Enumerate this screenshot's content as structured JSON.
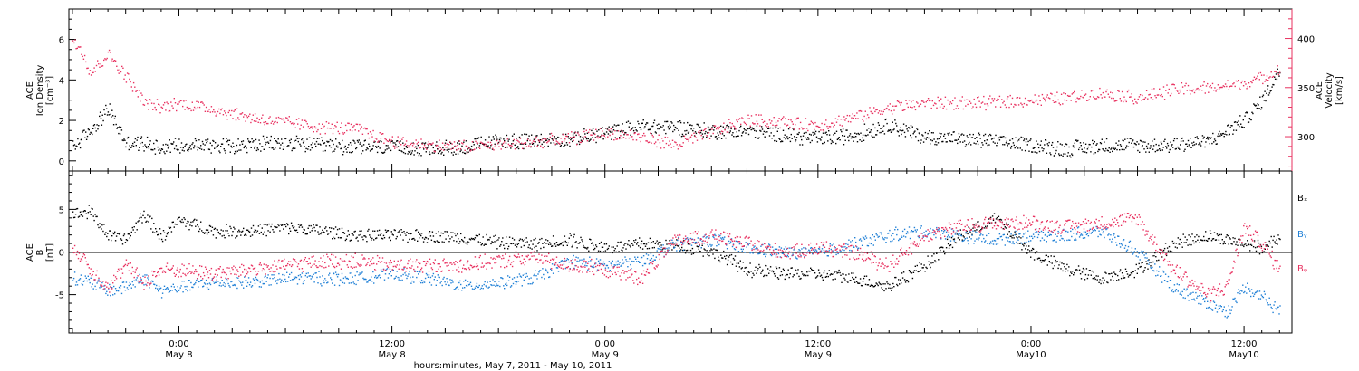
{
  "colors": {
    "density": "#000000",
    "velocity": "#e8305f",
    "bx": "#000000",
    "by": "#1e7fd6",
    "bz": "#e8305f",
    "axes": "#000000"
  },
  "chart_data": [
    {
      "type": "scatter",
      "panel": "top",
      "ylabel_left": [
        "ACE",
        "Ion Density",
        "[cm⁻³]"
      ],
      "ylabel_right": [
        "ACE",
        "Velocity",
        "[km/s]"
      ],
      "ylim_left": [
        -0.5,
        7.5
      ],
      "ylim_right": [
        265,
        430
      ],
      "yticks_left": [
        "0",
        "2",
        "4",
        "6"
      ],
      "yticks_right": [
        "300",
        "350",
        "400"
      ],
      "x_unit": "hours since 2011-05-07 00:00 UT",
      "xlim": [
        17.8,
        86.7
      ],
      "series": [
        {
          "key": "density",
          "axis": "left",
          "x": [
            18,
            19,
            20,
            21,
            22,
            23,
            24,
            26,
            28,
            30,
            32,
            34,
            36,
            38,
            40,
            42,
            44,
            46,
            48,
            50,
            52,
            54,
            56,
            58,
            60,
            62,
            64,
            66,
            68,
            70,
            72,
            74,
            76,
            78,
            80,
            82,
            83,
            84,
            85,
            86
          ],
          "y": [
            0.7,
            1.5,
            2.6,
            0.9,
            0.9,
            0.7,
            0.8,
            0.8,
            0.8,
            0.9,
            0.8,
            0.7,
            0.7,
            0.6,
            0.7,
            1.0,
            1.0,
            1.1,
            1.4,
            1.7,
            1.7,
            1.5,
            1.5,
            1.3,
            1.1,
            1.3,
            1.8,
            1.2,
            1.1,
            1.0,
            0.8,
            0.6,
            0.8,
            0.8,
            0.8,
            1.0,
            1.5,
            2.0,
            3.0,
            4.5
          ]
        },
        {
          "key": "velocity",
          "axis": "right",
          "x": [
            18,
            18.5,
            19,
            20,
            21,
            22,
            23,
            24,
            26,
            28,
            30,
            32,
            34,
            36,
            38,
            40,
            42,
            44,
            46,
            48,
            50,
            52,
            54,
            56,
            58,
            60,
            62,
            64,
            66,
            68,
            70,
            72,
            74,
            76,
            78,
            80,
            82,
            83,
            84,
            85,
            86
          ],
          "y": [
            400,
            390,
            365,
            385,
            362,
            335,
            330,
            335,
            328,
            320,
            315,
            310,
            308,
            295,
            292,
            290,
            292,
            295,
            298,
            305,
            300,
            292,
            305,
            318,
            315,
            312,
            320,
            330,
            335,
            335,
            335,
            338,
            340,
            345,
            340,
            348,
            350,
            352,
            355,
            360,
            370
          ]
        }
      ]
    },
    {
      "type": "scatter",
      "panel": "bottom",
      "ylabel_left": [
        "ACE",
        "B",
        "[nT]"
      ],
      "ylim": [
        -9.5,
        9.5
      ],
      "yticks": [
        "-5",
        "0",
        "5"
      ],
      "x_unit": "hours since 2011-05-07 00:00 UT",
      "xlim": [
        17.8,
        86.7
      ],
      "series": [
        {
          "key": "bx",
          "name": "Bₓ",
          "x": [
            18,
            19,
            20,
            21,
            22,
            23,
            24,
            26,
            28,
            30,
            32,
            34,
            36,
            38,
            40,
            42,
            44,
            46,
            48,
            50,
            52,
            54,
            56,
            58,
            60,
            62,
            64,
            66,
            68,
            70,
            72,
            74,
            76,
            78,
            80,
            82,
            84,
            85,
            86
          ],
          "y": [
            4.5,
            4.8,
            2.0,
            1.5,
            4.5,
            1.8,
            3.8,
            2.5,
            2.5,
            3.0,
            2.5,
            2.0,
            2.0,
            2.0,
            1.8,
            1.2,
            1.0,
            1.5,
            0.5,
            1.0,
            0.8,
            0.2,
            -2.0,
            -2.5,
            -2.5,
            -3.0,
            -4.0,
            -1.5,
            2.0,
            4.0,
            0.0,
            -2.0,
            -3.0,
            -2.0,
            1.0,
            2.0,
            1.0,
            0.5,
            2.0
          ]
        },
        {
          "key": "by",
          "name": "Bᵧ",
          "x": [
            18,
            19,
            20,
            21,
            22,
            23,
            24,
            26,
            28,
            30,
            32,
            34,
            36,
            38,
            40,
            42,
            44,
            46,
            48,
            50,
            52,
            54,
            56,
            58,
            60,
            62,
            64,
            66,
            68,
            70,
            72,
            74,
            76,
            78,
            80,
            82,
            83,
            84,
            85,
            86
          ],
          "y": [
            -3.0,
            -3.5,
            -4.5,
            -4.0,
            -3.0,
            -4.5,
            -4.0,
            -3.5,
            -3.5,
            -3.0,
            -3.0,
            -3.0,
            -2.5,
            -3.0,
            -4.0,
            -3.5,
            -3.0,
            -1.0,
            -1.5,
            -1.0,
            1.0,
            1.5,
            0.5,
            0.0,
            0.0,
            1.0,
            2.0,
            2.5,
            2.0,
            1.5,
            2.0,
            2.0,
            2.5,
            0.0,
            -4.0,
            -6.0,
            -7.0,
            -4.0,
            -5.0,
            -7.0
          ]
        },
        {
          "key": "bz",
          "name": "Bᵩ",
          "x": [
            18,
            19,
            20,
            21,
            22,
            23,
            24,
            26,
            28,
            30,
            32,
            34,
            36,
            38,
            40,
            42,
            44,
            46,
            48,
            50,
            52,
            54,
            56,
            58,
            60,
            62,
            64,
            66,
            68,
            70,
            72,
            74,
            76,
            78,
            80,
            82,
            83,
            84,
            85,
            86
          ],
          "y": [
            1.0,
            -2.0,
            -4.0,
            -1.5,
            -3.5,
            -2.0,
            -2.0,
            -2.5,
            -2.0,
            -1.5,
            -1.0,
            -1.0,
            -1.5,
            -1.5,
            -1.5,
            -1.0,
            -0.5,
            -1.5,
            -2.0,
            -3.0,
            1.5,
            2.0,
            1.0,
            0.0,
            0.5,
            0.0,
            -1.5,
            2.0,
            3.0,
            3.5,
            3.5,
            3.0,
            3.5,
            4.0,
            -2.0,
            -5.0,
            -4.0,
            3.0,
            1.0,
            -2.0
          ]
        }
      ]
    }
  ],
  "xaxis": {
    "ticks": [
      {
        "t": 24,
        "time": "0:00",
        "day": "May 8"
      },
      {
        "t": 36,
        "time": "12:00",
        "day": "May 8"
      },
      {
        "t": 48,
        "time": "0:00",
        "day": "May 9"
      },
      {
        "t": 60,
        "time": "12:00",
        "day": "May 9"
      },
      {
        "t": 72,
        "time": "0:00",
        "day": "May10"
      },
      {
        "t": 84,
        "time": "12:00",
        "day": "May10"
      }
    ],
    "title": "hours:minutes, May  7, 2011 - May 10, 2011"
  },
  "legend": {
    "bx": "Bₓ",
    "by": "Bᵧ",
    "bz": "Bᵩ"
  }
}
